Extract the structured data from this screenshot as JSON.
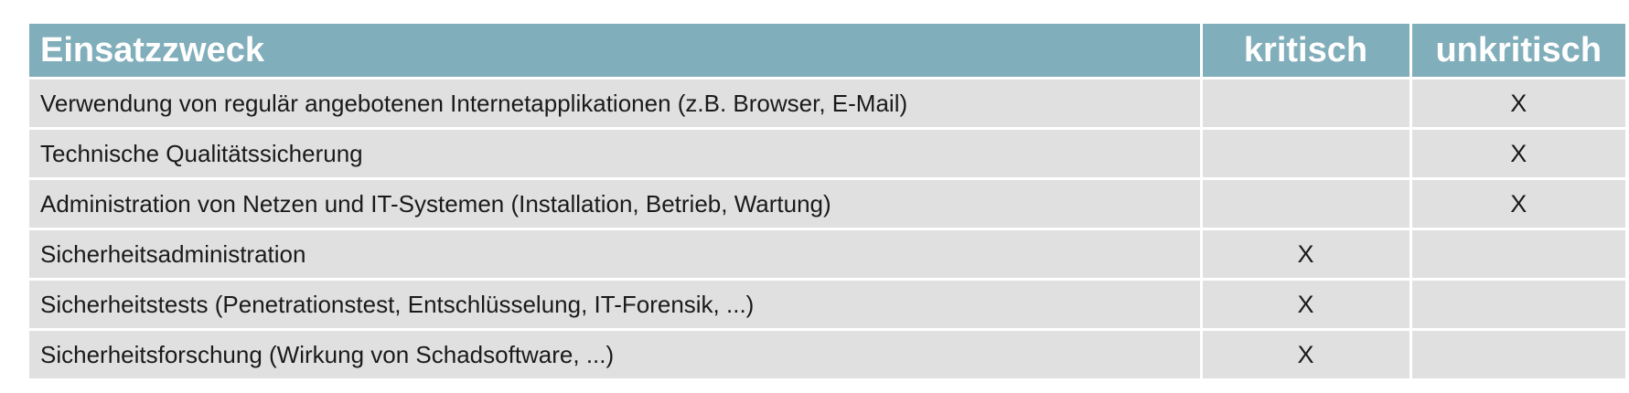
{
  "table": {
    "headers": {
      "purpose": "Einsatzzweck",
      "critical": "kritisch",
      "uncritical": "unkritisch"
    },
    "rows": [
      {
        "purpose": "Verwendung von regulär angebotenen Internetapplikationen (z.B. Browser, E-Mail)",
        "critical": "",
        "uncritical": "X"
      },
      {
        "purpose": "Technische Qualitätssicherung",
        "critical": "",
        "uncritical": "X"
      },
      {
        "purpose": "Administration von Netzen und IT-Systemen (Installation, Betrieb, Wartung)",
        "critical": "",
        "uncritical": "X"
      },
      {
        "purpose": "Sicherheitsadministration",
        "critical": "X",
        "uncritical": ""
      },
      {
        "purpose": "Sicherheitstests (Penetrationstest, Entschlüsselung, IT-Forensik, ...)",
        "critical": "X",
        "uncritical": ""
      },
      {
        "purpose": "Sicherheitsforschung (Wirkung von Schadsoftware, ...)",
        "critical": "X",
        "uncritical": ""
      }
    ],
    "colors": {
      "header_bg": "#81aebb",
      "header_text": "#ffffff",
      "cell_bg": "#e0e0e0",
      "cell_text": "#1a1a1a"
    }
  }
}
